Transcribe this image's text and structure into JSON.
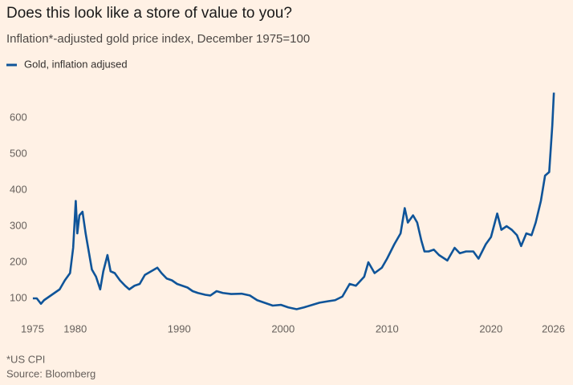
{
  "chart_data": {
    "type": "line",
    "title": "Does this look like a store of value to you?",
    "subtitle": "Inflation*-adjusted gold price index, December 1975=100",
    "footnote": "*US CPI",
    "source": "Source: Bloomberg",
    "x": [
      1975.92,
      1976.3,
      1976.7,
      1977,
      1977.5,
      1978,
      1978.5,
      1979,
      1979.5,
      1979.8,
      1980.05,
      1980.2,
      1980.4,
      1980.7,
      1981,
      1981.3,
      1981.6,
      1982,
      1982.4,
      1982.7,
      1983.1,
      1983.4,
      1983.8,
      1984.3,
      1984.8,
      1985.2,
      1985.7,
      1986.2,
      1986.7,
      1987.3,
      1987.9,
      1988.3,
      1988.8,
      1989.3,
      1989.8,
      1990.3,
      1990.8,
      1991.3,
      1991.8,
      1992.5,
      1993,
      1993.6,
      1994.2,
      1995,
      1996,
      1996.8,
      1997.5,
      1998,
      1998.5,
      1999,
      1999.8,
      2000.5,
      2001.3,
      2002,
      2002.8,
      2003.5,
      2004.3,
      2005,
      2005.7,
      2006.4,
      2007,
      2007.8,
      2008.2,
      2008.8,
      2009.5,
      2010,
      2010.7,
      2011.3,
      2011.7,
      2012,
      2012.5,
      2012.9,
      2013.3,
      2013.6,
      2014,
      2014.5,
      2015,
      2015.8,
      2016.5,
      2017,
      2017.6,
      2018.3,
      2018.8,
      2019.5,
      2020,
      2020.6,
      2021,
      2021.5,
      2022,
      2022.5,
      2022.9,
      2023.4,
      2023.9,
      2024.3,
      2024.8,
      2025.2,
      2025.6,
      2025.9,
      2026.05
    ],
    "series": [
      {
        "name": "Gold, inflation adjused",
        "color": "#0f5499",
        "values": [
          100,
          100,
          85,
          95,
          105,
          115,
          125,
          150,
          170,
          240,
          370,
          280,
          330,
          340,
          280,
          230,
          180,
          160,
          125,
          175,
          220,
          175,
          170,
          150,
          135,
          125,
          135,
          140,
          165,
          175,
          185,
          170,
          155,
          150,
          140,
          135,
          130,
          120,
          115,
          110,
          108,
          120,
          115,
          112,
          113,
          108,
          95,
          90,
          85,
          80,
          82,
          75,
          70,
          75,
          82,
          88,
          92,
          95,
          105,
          140,
          135,
          160,
          200,
          170,
          185,
          210,
          250,
          280,
          350,
          310,
          330,
          310,
          260,
          230,
          230,
          235,
          220,
          205,
          240,
          225,
          230,
          230,
          210,
          250,
          270,
          335,
          290,
          300,
          290,
          275,
          245,
          280,
          275,
          310,
          370,
          440,
          450,
          580,
          670
        ]
      }
    ],
    "xlim": [
      1975,
      2026.5
    ],
    "ylim": [
      30,
      680
    ],
    "xticks": [
      1975,
      1980,
      1990,
      2000,
      2010,
      2020,
      2026
    ],
    "yticks": [
      100,
      200,
      300,
      400,
      500,
      600
    ]
  }
}
